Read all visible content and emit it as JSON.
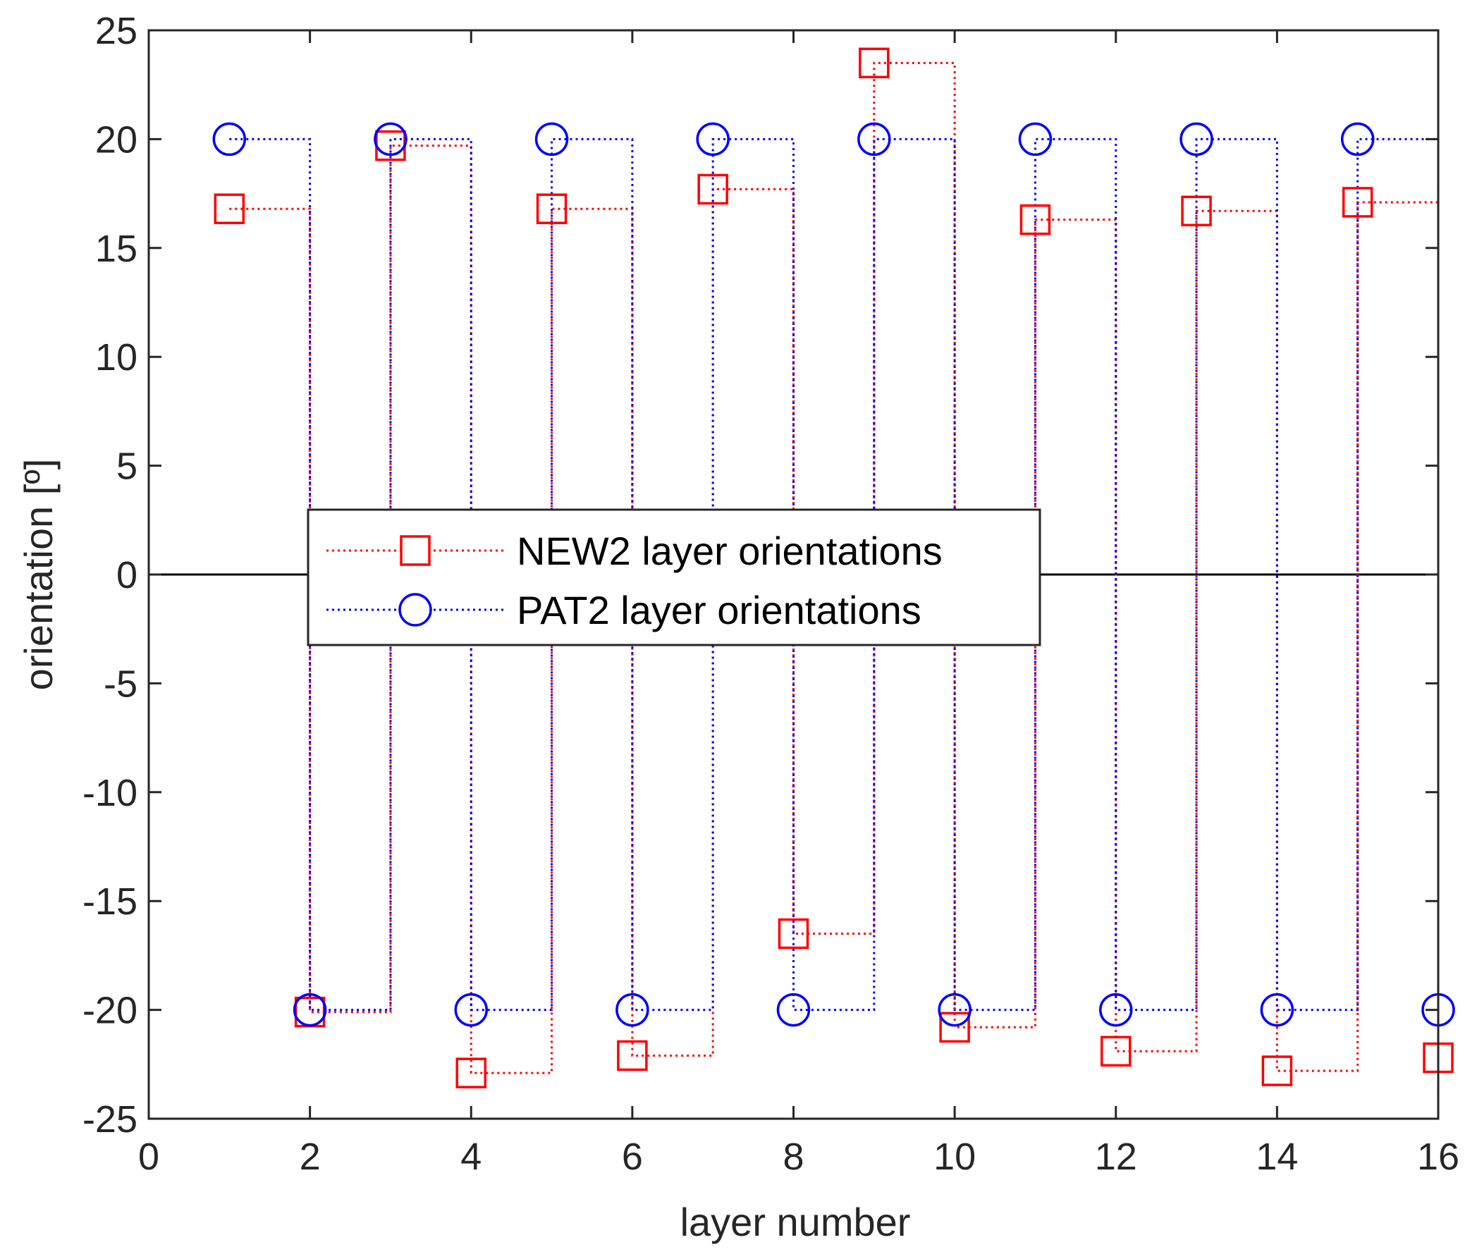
{
  "chart_data": {
    "type": "line",
    "step": true,
    "title": "",
    "xlabel": "layer number",
    "ylabel": "orientation [º]",
    "xlim": [
      0,
      16
    ],
    "ylim": [
      -25,
      25
    ],
    "xticks": [
      0,
      2,
      4,
      6,
      8,
      10,
      12,
      14,
      16
    ],
    "yticks": [
      -25,
      -20,
      -15,
      -10,
      -5,
      0,
      5,
      10,
      15,
      20,
      25
    ],
    "grid": false,
    "zero_line": true,
    "legend_position": "center-left",
    "x": [
      1,
      2,
      3,
      4,
      5,
      6,
      7,
      8,
      9,
      10,
      11,
      12,
      13,
      14,
      15,
      16
    ],
    "series": [
      {
        "name": "NEW2 layer orientations",
        "color": "#ff0000",
        "marker": "square",
        "linestyle": "dotted",
        "values": [
          16.8,
          -20.1,
          19.7,
          -22.9,
          16.8,
          -22.1,
          17.7,
          -16.5,
          23.5,
          -20.8,
          16.3,
          -21.9,
          16.7,
          -22.8,
          17.1,
          -22.2
        ]
      },
      {
        "name": "PAT2 layer orientations",
        "color": "#0000ff",
        "marker": "circle",
        "linestyle": "dotted",
        "values": [
          20,
          -20,
          20,
          -20,
          20,
          -20,
          20,
          -20,
          20,
          -20,
          20,
          -20,
          20,
          -20,
          20,
          -20
        ]
      }
    ]
  }
}
